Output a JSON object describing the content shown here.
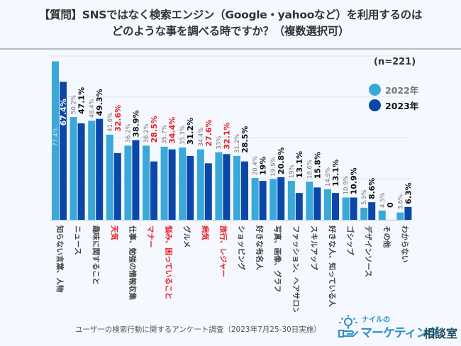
{
  "title_line1": "【質問】SNSではなく検索エンジン（Google・yahooなど）を利用するのは",
  "title_line2": "どのような事を調べる時ですか？（複数選択可）",
  "sample_size": "(n=221)",
  "footer": "ユーザーの検索行動に関するアンケート調査（2023年7月25-30日実施）",
  "logo": {
    "small": "ナイルの",
    "main": "マーケティング",
    "suffix": "相談室",
    "icon": "lightbulb-hand-icon"
  },
  "colors": {
    "series2022": "#3aa8d8",
    "series2023": "#0a47a8",
    "highlight": "#ee1c25",
    "label2022": "#777777",
    "label2023": "#111111"
  },
  "chart_data": {
    "type": "bar",
    "title": "【質問】SNSではなく検索エンジン（Google・yahooなど）を利用するのはどのような事を調べる時ですか？（複数選択可）",
    "xlabel": "",
    "ylabel": "",
    "ylim": [
      0,
      80
    ],
    "grid": true,
    "gridlines": [
      20,
      40,
      60,
      80
    ],
    "legend_position": "top-right",
    "categories": [
      "知らない言葉、人物",
      "ニュース",
      "趣味に関すること",
      "天気",
      "仕事、勉強の情報収集",
      "マナー",
      "悩み、困っていること",
      "グルメ",
      "病気",
      "旅行、レジャー",
      "ショッピング",
      "好きな有名人",
      "写真、画像、グラフ",
      "ファッション、ヘアサロン",
      "スキルアップ",
      "好きな人、知っている人",
      "ゴシップ",
      "デザインソース",
      "その他",
      "わからない"
    ],
    "highlighted_categories": [
      "天気",
      "マナー",
      "悩み、困っていること",
      "病気",
      "旅行、レジャー"
    ],
    "series": [
      {
        "name": "2022年",
        "values": [
          77.4,
          50.2,
          48.4,
          41.6,
          36.2,
          36.2,
          35.7,
          35.3,
          34.4,
          33,
          31.2,
          20.4,
          19.9,
          19,
          18.6,
          14.9,
          10.9,
          5.9,
          4.5,
          3.6
        ],
        "labels": [
          "77.4%",
          "50.2%",
          "48.4%",
          "41.6%",
          "36.2%",
          "36.2%",
          "35.7%",
          "35.3%",
          "34.4%",
          "33%",
          "31.2%",
          "20.4%",
          "19.9%",
          "19%",
          "18.6%",
          "14.9%",
          "10.9%",
          "5.9%",
          "4.5%",
          "3.6%"
        ]
      },
      {
        "name": "2023年",
        "values": [
          67.4,
          47.1,
          49.3,
          32.6,
          38.9,
          28.5,
          34.4,
          31.2,
          27.6,
          32.1,
          28.5,
          19,
          20.8,
          13.1,
          15.8,
          13.1,
          10.9,
          8.6,
          0,
          6.3
        ],
        "labels": [
          "67.4%",
          "47.1%",
          "49.3%",
          "32.6%",
          "38.9%",
          "28.5%",
          "34.4%",
          "31.2%",
          "27.6%",
          "32.1%",
          "28.5%",
          "19%",
          "20.8%",
          "13.1%",
          "15.8%",
          "13.1%",
          "10.9%",
          "8.6%",
          "0",
          "6.3%"
        ],
        "highlighted_labels": [
          3,
          5,
          6,
          8,
          9
        ]
      }
    ]
  }
}
